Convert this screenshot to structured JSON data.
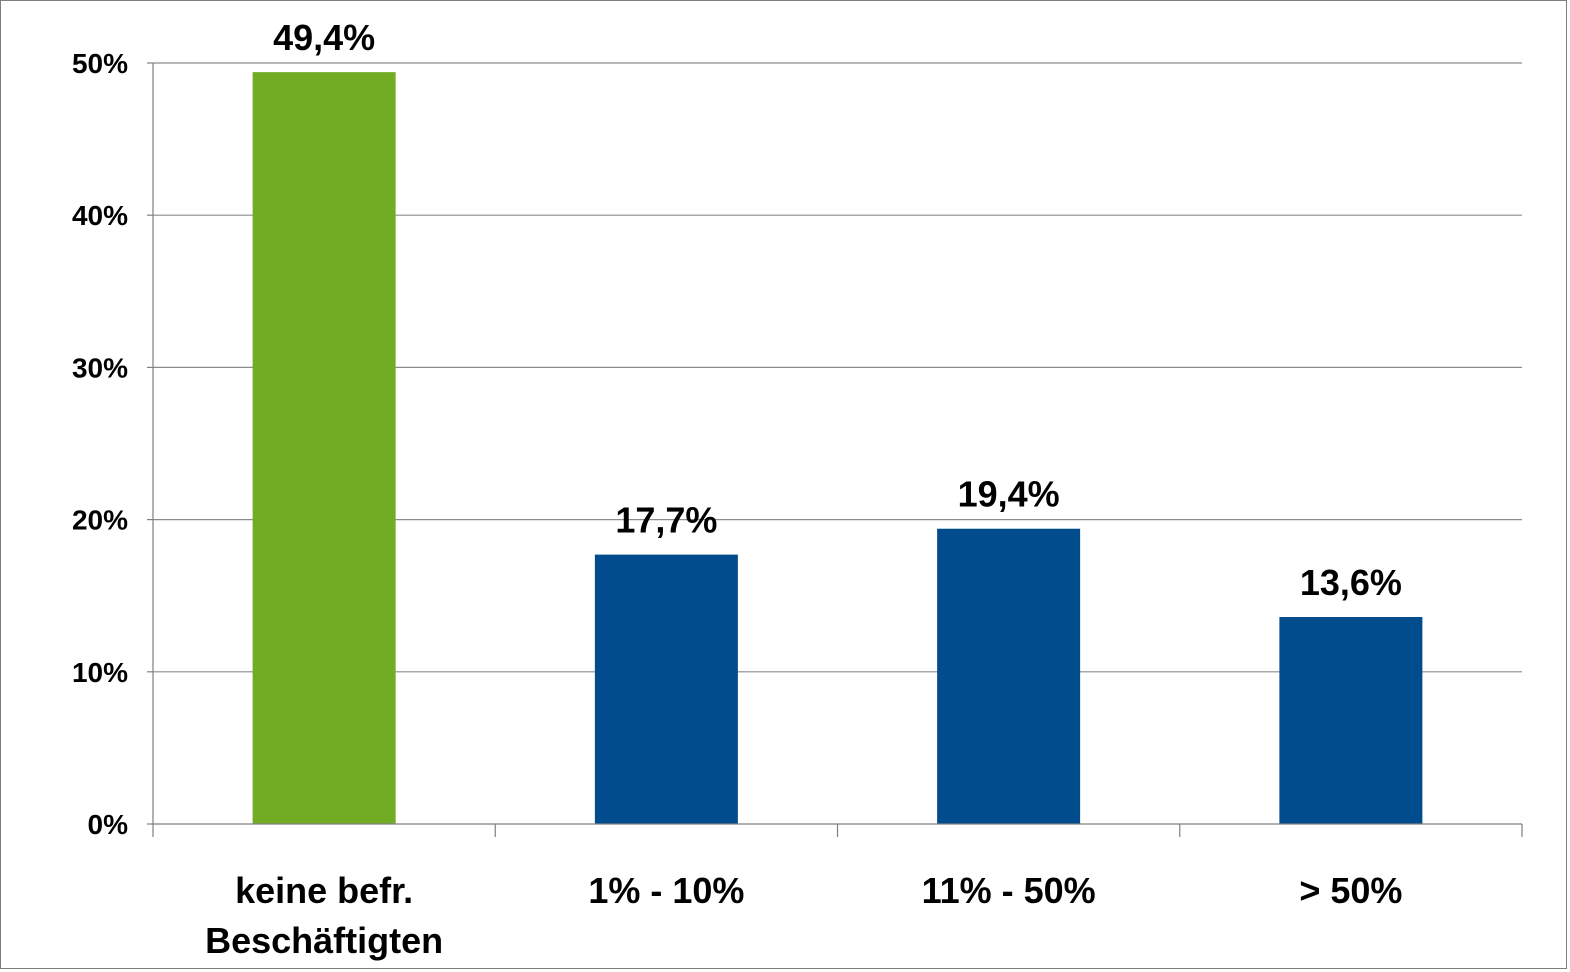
{
  "chart_data": {
    "type": "bar",
    "categories": [
      [
        "keine befr.",
        "Beschäftigten"
      ],
      [
        "1% - 10%"
      ],
      [
        "11% - 50%"
      ],
      [
        "> 50%"
      ]
    ],
    "values": [
      49.4,
      17.7,
      19.4,
      13.6
    ],
    "data_labels": [
      "49,4%",
      "17,7%",
      "19,4%",
      "13,6%"
    ],
    "bar_colors": [
      "#72AB24",
      "#004C8C",
      "#004C8C",
      "#004C8C"
    ],
    "ylim": [
      0,
      50
    ],
    "yticks": [
      0,
      10,
      20,
      30,
      40,
      50
    ],
    "ytick_labels": [
      "0%",
      "10%",
      "20%",
      "30%",
      "40%",
      "50%"
    ],
    "grid": true,
    "gridline_color": "#8c8c8c",
    "xlabel": "",
    "ylabel": "",
    "title": ""
  }
}
